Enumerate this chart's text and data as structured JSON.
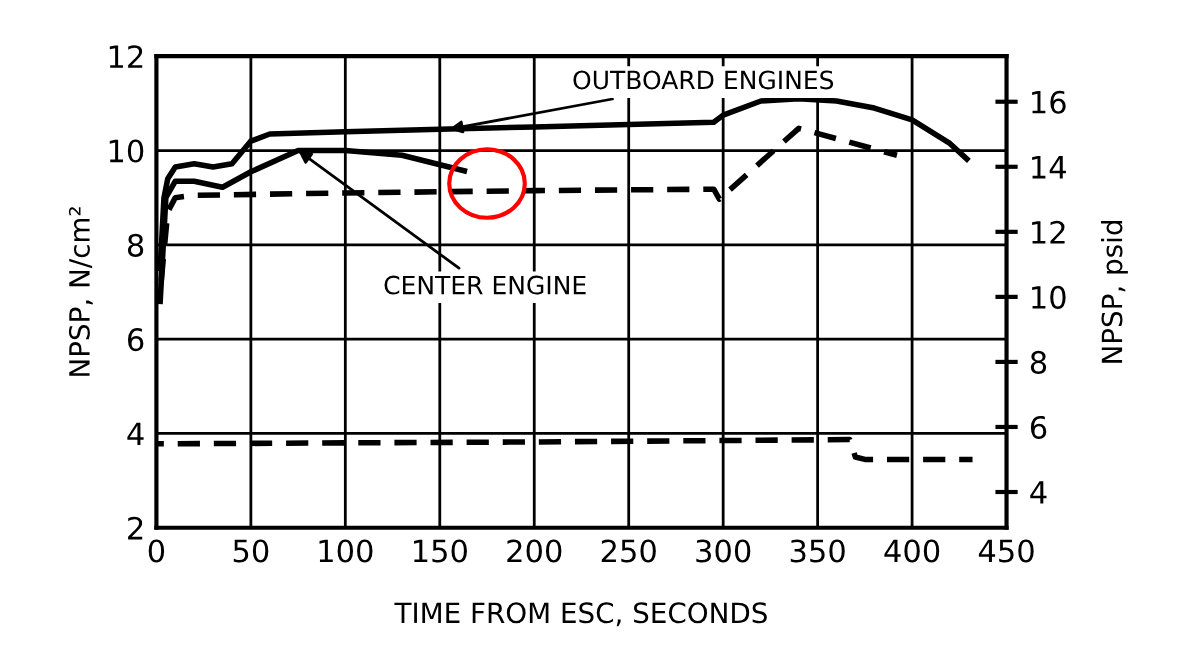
{
  "chart_data": {
    "type": "line",
    "xlabel": "TIME FROM ESC, SECONDS",
    "ylabel": "NPSP, N/cm²",
    "y2label": "NPSP, psid",
    "xlim": [
      0,
      450
    ],
    "xticks": [
      0,
      50,
      100,
      150,
      200,
      250,
      300,
      350,
      400,
      450
    ],
    "ylim": [
      2,
      12
    ],
    "yticks": [
      2,
      4,
      6,
      8,
      10,
      12
    ],
    "y2lim": [
      2.9,
      17.4
    ],
    "y2ticks": [
      4,
      6,
      8,
      10,
      12,
      14,
      16
    ],
    "grid": true,
    "series": [
      {
        "color": "#000000",
        "line_style": "solid",
        "x": [
          2,
          4,
          6,
          10,
          20,
          30,
          40,
          50,
          60,
          100,
          150,
          200,
          250,
          295,
          300,
          320,
          340,
          360,
          380,
          400,
          420,
          429
        ],
        "values": [
          7.5,
          9.0,
          9.4,
          9.65,
          9.72,
          9.65,
          9.72,
          10.2,
          10.35,
          10.4,
          10.45,
          10.5,
          10.55,
          10.6,
          10.75,
          11.05,
          11.1,
          11.05,
          10.9,
          10.65,
          10.15,
          9.82
        ]
      },
      {
        "color": "#000000",
        "line_style": "solid",
        "x": [
          2,
          5,
          10,
          20,
          35,
          50,
          75,
          100,
          130,
          163
        ],
        "values": [
          6.8,
          9.0,
          9.35,
          9.35,
          9.22,
          9.55,
          10.0,
          10.0,
          9.9,
          9.57
        ]
      },
      {
        "color": "#000000",
        "line_style": "dashed",
        "x": [
          2,
          6,
          10,
          20,
          100,
          200,
          295,
          298,
          340,
          392
        ],
        "values": [
          7.0,
          8.7,
          9.0,
          9.05,
          9.1,
          9.15,
          9.18,
          8.97,
          10.47,
          9.9
        ]
      },
      {
        "color": "#000000",
        "line_style": "dashed",
        "x": [
          0,
          200,
          367,
          370,
          375,
          432
        ],
        "values": [
          3.78,
          3.82,
          3.87,
          3.5,
          3.45,
          3.45
        ]
      }
    ],
    "annotations": [
      {
        "text": "OUTBOARD ENGINES",
        "x": 155,
        "y": 10.45
      },
      {
        "text": "CENTER ENGINE",
        "x": 75,
        "y": 10.0
      }
    ]
  }
}
